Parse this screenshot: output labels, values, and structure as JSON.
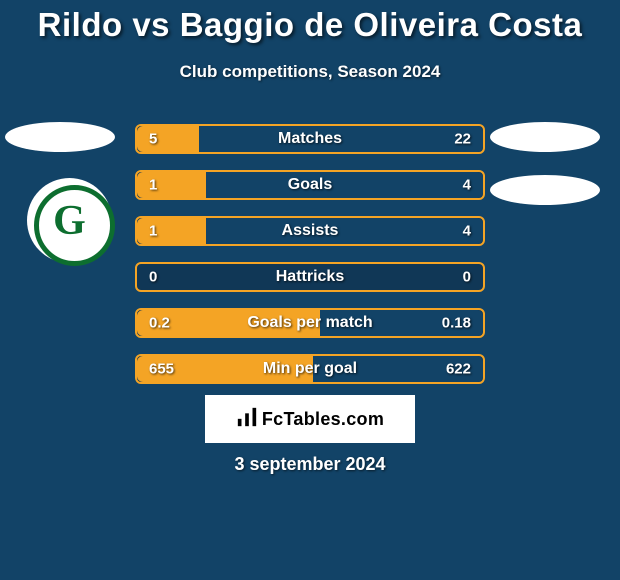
{
  "title": "Rildo vs Baggio de Oliveira Costa",
  "subtitle": "Club competitions, Season 2024",
  "date": "3 september 2024",
  "brand": "FcTables.com",
  "background_color": "#124367",
  "colors": {
    "bar_bg": "#103756",
    "bar_border": "#f4a425",
    "fill_left": "#f4a425",
    "fill_right": "#124367",
    "text_white": "#ffffff"
  },
  "club_left_letter": "G",
  "bars": [
    {
      "label": "Matches",
      "left": "5",
      "right": "22",
      "left_pct": 18,
      "right_pct": 82
    },
    {
      "label": "Goals",
      "left": "1",
      "right": "4",
      "left_pct": 20,
      "right_pct": 80
    },
    {
      "label": "Assists",
      "left": "1",
      "right": "4",
      "left_pct": 20,
      "right_pct": 80
    },
    {
      "label": "Hattricks",
      "left": "0",
      "right": "0",
      "left_pct": 0,
      "right_pct": 0
    },
    {
      "label": "Goals per match",
      "left": "0.2",
      "right": "0.18",
      "left_pct": 53,
      "right_pct": 47
    },
    {
      "label": "Min per goal",
      "left": "655",
      "right": "622",
      "left_pct": 51,
      "right_pct": 49
    }
  ]
}
